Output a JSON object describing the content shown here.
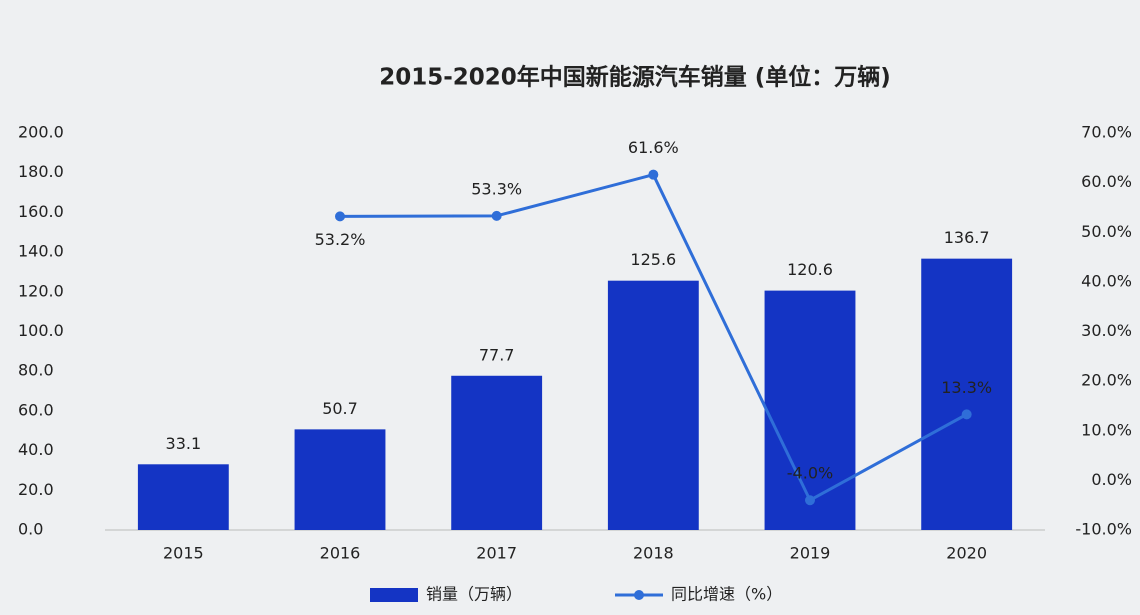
{
  "chart_data": {
    "type": "bar",
    "title": "2015-2020年中国新能源汽车销量 (单位：万辆)",
    "categories": [
      "2015",
      "2016",
      "2017",
      "2018",
      "2019",
      "2020"
    ],
    "series": [
      {
        "name": "销量（万辆）",
        "type": "bar",
        "color": "#1434c4",
        "values": [
          33.1,
          50.7,
          77.7,
          125.6,
          120.6,
          136.7
        ]
      },
      {
        "name": "同比增速（%）",
        "type": "line",
        "axis": "y2",
        "color": "#2f6ed8",
        "values": [
          null,
          53.2,
          53.3,
          61.6,
          -4.0,
          13.3
        ],
        "value_labels": [
          null,
          "53.2%",
          "53.3%",
          "61.6%",
          "-4.0%",
          "13.3%"
        ]
      }
    ],
    "ylim": [
      0,
      200
    ],
    "yticks": [
      {
        "value": 0,
        "label": "0.0"
      },
      {
        "value": 20,
        "label": "20.0"
      },
      {
        "value": 40,
        "label": "40.0"
      },
      {
        "value": 60,
        "label": "60.0"
      },
      {
        "value": 80,
        "label": "80.0"
      },
      {
        "value": 100,
        "label": "100.0"
      },
      {
        "value": 120,
        "label": "120.0"
      },
      {
        "value": 140,
        "label": "140.0"
      },
      {
        "value": 160,
        "label": "160.0"
      },
      {
        "value": 180,
        "label": "180.0"
      },
      {
        "value": 200,
        "label": "200.0"
      }
    ],
    "y2lim": [
      -10,
      70
    ],
    "y2ticks": [
      {
        "value": -10,
        "label": "-10.0%"
      },
      {
        "value": 0,
        "label": "0.0%"
      },
      {
        "value": 10,
        "label": "10.0%"
      },
      {
        "value": 20,
        "label": "20.0%"
      },
      {
        "value": 30,
        "label": "30.0%"
      },
      {
        "value": 40,
        "label": "40.0%"
      },
      {
        "value": 50,
        "label": "50.0%"
      },
      {
        "value": 60,
        "label": "60.0%"
      },
      {
        "value": 70,
        "label": "70.0%"
      }
    ],
    "grid": false,
    "legend": "bottom"
  }
}
